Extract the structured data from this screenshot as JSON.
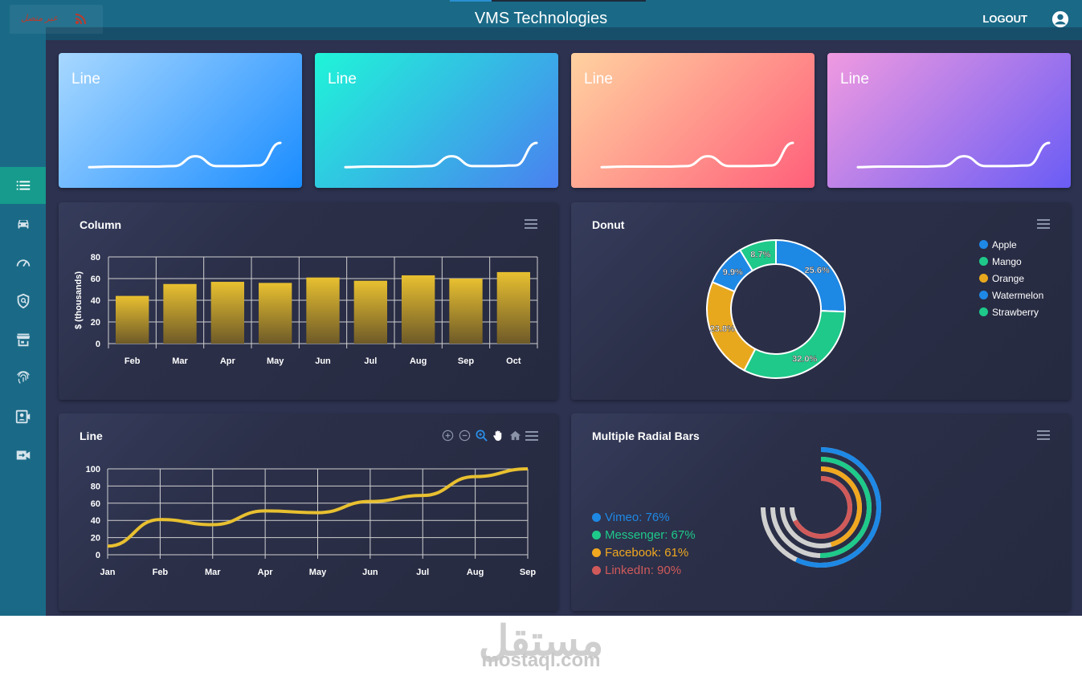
{
  "header": {
    "title": "VMS Technologies",
    "logout_label": "LOGOUT",
    "brand_text": "عبر متصل"
  },
  "sidebar": {
    "items": [
      {
        "icon": "list-icon",
        "active": true
      },
      {
        "icon": "car-icon",
        "active": false
      },
      {
        "icon": "speedometer-icon",
        "active": false
      },
      {
        "icon": "shield-search-icon",
        "active": false
      },
      {
        "icon": "store-icon",
        "active": false
      },
      {
        "icon": "fingerprint-icon",
        "active": false
      },
      {
        "icon": "contact-video-icon",
        "active": false
      },
      {
        "icon": "video-switch-icon",
        "active": false
      }
    ]
  },
  "sparklines": [
    {
      "title": "Line",
      "gradient": [
        "#a8d8ff",
        "#1a8cff"
      ]
    },
    {
      "title": "Line",
      "gradient": [
        "#1ff5d8",
        "#4a80f0"
      ]
    },
    {
      "title": "Line",
      "gradient": [
        "#ffd2a0",
        "#ff5f7a"
      ]
    },
    {
      "title": "Line",
      "gradient": [
        "#f09ae0",
        "#6a5cf5"
      ]
    }
  ],
  "sparkline_shape": [
    21,
    22,
    22,
    22,
    23,
    40,
    23,
    23,
    24,
    63
  ],
  "column_chart": {
    "title": "Column",
    "chart_data": {
      "type": "bar",
      "categories": [
        "Feb",
        "Mar",
        "Apr",
        "May",
        "Jun",
        "Jul",
        "Aug",
        "Sep",
        "Oct"
      ],
      "values": [
        44,
        55,
        57,
        56,
        61,
        58,
        63,
        60,
        66
      ],
      "ylabel": "$ (thousands)",
      "ylim": [
        0,
        80
      ],
      "yticks": [
        0,
        20,
        40,
        60,
        80
      ],
      "grid": true,
      "color": "#e8c030"
    }
  },
  "donut_chart": {
    "title": "Donut",
    "chart_data": {
      "type": "pie",
      "labels": [
        "Apple",
        "Mango",
        "Orange",
        "Watermelon",
        "Strawberry"
      ],
      "values": [
        25.6,
        32.0,
        23.8,
        9.9,
        8.7
      ],
      "value_labels": [
        "25.6%",
        "32.0%",
        "23.8%",
        "9.9%",
        "8.7%"
      ],
      "colors": [
        "#1e88e5",
        "#1ec98a",
        "#e8a81e",
        "#1e88e5",
        "#1ec98a"
      ],
      "legend": "top-right"
    }
  },
  "line_chart": {
    "title": "Line",
    "chart_data": {
      "type": "line",
      "categories": [
        "Jan",
        "Feb",
        "Mar",
        "Apr",
        "May",
        "Jun",
        "Jul",
        "Aug",
        "Sep"
      ],
      "values": [
        10,
        41,
        35,
        51,
        49,
        62,
        69,
        91,
        100
      ],
      "ylim": [
        0,
        100
      ],
      "yticks": [
        0,
        20,
        40,
        60,
        80,
        100
      ],
      "grid": true,
      "color": "#e8c030"
    },
    "toolbar": [
      "zoom-in-icon",
      "zoom-out-icon",
      "zoom-select-icon",
      "pan-hand-icon",
      "home-icon"
    ]
  },
  "radial_chart": {
    "title": "Multiple Radial Bars",
    "chart_data": {
      "type": "radialBar",
      "labels": [
        "Vimeo",
        "Messenger",
        "Facebook",
        "LinkedIn"
      ],
      "values": [
        76,
        67,
        61,
        90
      ],
      "legend_labels": [
        "Vimeo: 76%",
        "Messenger: 67%",
        "Facebook: 61%",
        "LinkedIn: 90%"
      ],
      "colors": [
        "#1e88e5",
        "#1ec98a",
        "#f0a820",
        "#d05a5a"
      ],
      "track_color": "#d0d0d0"
    }
  },
  "watermark": {
    "arabic": "مستقل",
    "latin": "mostaql.com"
  }
}
